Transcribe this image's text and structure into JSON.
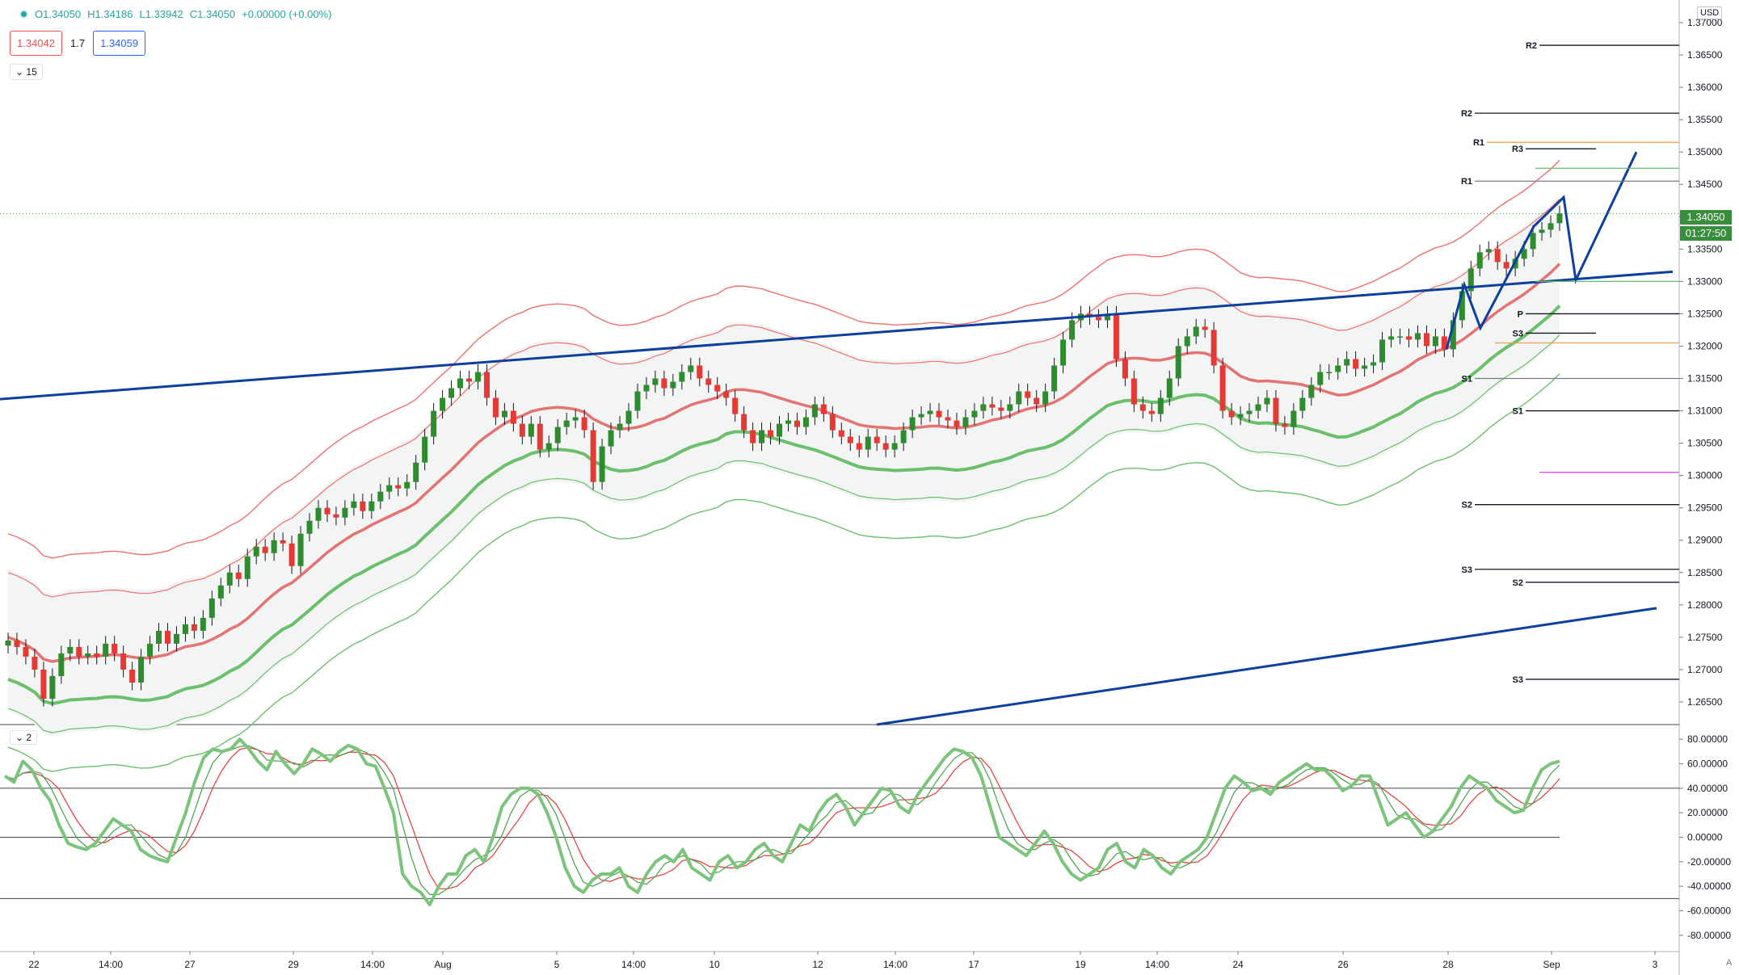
{
  "legend": {
    "open": "O1.34050",
    "high": "H1.34186",
    "low": "L1.33942",
    "close": "C1.34050",
    "change": "+0.00000 (+0.00%)"
  },
  "quote": {
    "sell": "1.34042",
    "spread": "1.7",
    "buy": "1.34059"
  },
  "interval": "15",
  "oscillator_badge": "2",
  "currency": "USD",
  "last_price": "1.34050",
  "countdown": "01:27:50",
  "auto_label": "A",
  "colors": {
    "up": "#2e8b2e",
    "down": "#e53935",
    "envelope_outer": "#f07070",
    "envelope_inner_low": "#6cbf6c",
    "trendline": "#0d3f9e",
    "zero_line": "#000000"
  },
  "chart_data": {
    "type": "candlestick",
    "title": "",
    "xlabel": "",
    "ylabel": "",
    "ylim": [
      1.2615,
      1.3725
    ],
    "x_ticks": [
      "22",
      "14:00",
      "27",
      "29",
      "14:00",
      "Aug",
      "5",
      "14:00",
      "10",
      "12",
      "14:00",
      "17",
      "19",
      "14:00",
      "24",
      "26",
      "28",
      "Sep",
      "3"
    ],
    "y_ticks": [
      "1.37000",
      "1.36500",
      "1.36000",
      "1.35500",
      "1.35000",
      "1.34500",
      "1.34000",
      "1.33500",
      "1.33000",
      "1.32500",
      "1.32000",
      "1.31500",
      "1.31000",
      "1.30500",
      "1.30000",
      "1.29500",
      "1.29000",
      "1.28500",
      "1.28000",
      "1.27500",
      "1.27000",
      "1.26500"
    ],
    "candles_close": [
      1.2745,
      1.2735,
      1.272,
      1.27,
      1.2655,
      1.269,
      1.2725,
      1.2735,
      1.272,
      1.2725,
      1.272,
      1.274,
      1.2725,
      1.27,
      1.268,
      1.272,
      1.274,
      1.276,
      1.274,
      1.2755,
      1.277,
      1.276,
      1.278,
      1.281,
      1.283,
      1.285,
      1.284,
      1.2875,
      1.289,
      1.288,
      1.29,
      1.2895,
      1.286,
      1.291,
      1.293,
      1.295,
      1.294,
      1.2935,
      1.295,
      1.296,
      1.2945,
      1.296,
      1.2975,
      1.2985,
      1.298,
      1.299,
      1.302,
      1.306,
      1.31,
      1.312,
      1.3135,
      1.315,
      1.3145,
      1.316,
      1.312,
      1.309,
      1.31,
      1.308,
      1.306,
      1.308,
      1.304,
      1.305,
      1.3075,
      1.3085,
      1.309,
      1.307,
      1.299,
      1.3045,
      1.307,
      1.308,
      1.31,
      1.313,
      1.314,
      1.315,
      1.3135,
      1.3145,
      1.316,
      1.317,
      1.315,
      1.314,
      1.313,
      1.312,
      1.3095,
      1.307,
      1.305,
      1.307,
      1.306,
      1.308,
      1.3085,
      1.3075,
      1.309,
      1.311,
      1.3095,
      1.307,
      1.306,
      1.305,
      1.304,
      1.306,
      1.305,
      1.304,
      1.305,
      1.307,
      1.309,
      1.3095,
      1.31,
      1.309,
      1.3085,
      1.3075,
      1.309,
      1.31,
      1.311,
      1.3105,
      1.31,
      1.311,
      1.313,
      1.312,
      1.311,
      1.313,
      1.317,
      1.321,
      1.324,
      1.325,
      1.3245,
      1.324,
      1.325,
      1.318,
      1.315,
      1.311,
      1.31,
      1.3095,
      1.312,
      1.315,
      1.32,
      1.3215,
      1.323,
      1.3225,
      1.317,
      1.31,
      1.309,
      1.3095,
      1.31,
      1.311,
      1.312,
      1.308,
      1.3075,
      1.31,
      1.312,
      1.314,
      1.316,
      1.316,
      1.317,
      1.318,
      1.3165,
      1.317,
      1.3175,
      1.321,
      1.3215,
      1.3215,
      1.321,
      1.322,
      1.32,
      1.3215,
      1.3195,
      1.324,
      1.3285,
      1.332,
      1.3345,
      1.335,
      1.333,
      1.332,
      1.3335,
      1.335,
      1.3375,
      1.338,
      1.339,
      1.3405
    ],
    "series": [
      {
        "name": "",
        "values": []
      }
    ],
    "pivot_labels": [
      "R2",
      "R2",
      "R1",
      "R3",
      "R1",
      "P",
      "S3",
      "S1",
      "S1",
      "S2",
      "S3",
      "S2",
      "S3"
    ],
    "oscillator": {
      "y_ticks": [
        "80.00000",
        "60.00000",
        "40.00000",
        "20.00000",
        "0.00000",
        "-20.00000",
        "-40.00000",
        "-60.00000",
        "-80.00000"
      ],
      "ylim": [
        -90,
        88
      ],
      "levels": [
        40,
        0,
        -50
      ],
      "main": [
        50,
        45,
        62,
        55,
        40,
        30,
        10,
        -5,
        -8,
        -10,
        -5,
        5,
        15,
        10,
        5,
        -10,
        -15,
        -18,
        -20,
        0,
        20,
        45,
        65,
        72,
        70,
        72,
        80,
        72,
        62,
        55,
        70,
        60,
        52,
        60,
        72,
        68,
        62,
        70,
        75,
        72,
        60,
        58,
        40,
        20,
        -30,
        -40,
        -45,
        -55,
        -40,
        -30,
        -30,
        -15,
        -10,
        -20,
        0,
        25,
        35,
        40,
        40,
        35,
        20,
        0,
        -25,
        -40,
        -45,
        -35,
        -30,
        -30,
        -25,
        -40,
        -45,
        -30,
        -20,
        -15,
        -20,
        -10,
        -25,
        -30,
        -35,
        -20,
        -15,
        -25,
        -20,
        -10,
        -5,
        -15,
        -20,
        -5,
        10,
        5,
        20,
        30,
        35,
        25,
        10,
        20,
        30,
        40,
        38,
        25,
        20,
        35,
        45,
        55,
        65,
        72,
        70,
        65,
        50,
        25,
        0,
        -5,
        -10,
        -15,
        -5,
        5,
        -5,
        -20,
        -30,
        -35,
        -30,
        -25,
        -10,
        -5,
        -20,
        -25,
        -10,
        -15,
        -25,
        -30,
        -20,
        -15,
        -10,
        0,
        20,
        40,
        50,
        45,
        38,
        40,
        35,
        45,
        50,
        55,
        60,
        55,
        55,
        48,
        38,
        42,
        50,
        50,
        30,
        10,
        15,
        20,
        10,
        0,
        5,
        15,
        25,
        40,
        50,
        45,
        40,
        30,
        25,
        20,
        22,
        40,
        55,
        60,
        62
      ]
    }
  }
}
